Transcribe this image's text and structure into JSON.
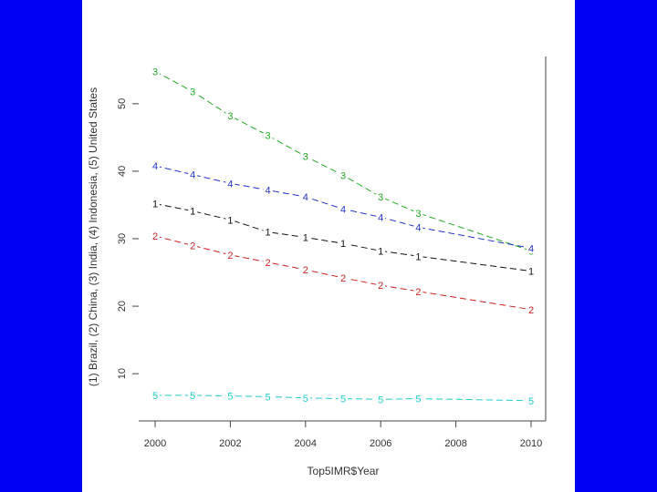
{
  "chart_data": {
    "type": "line",
    "title": "",
    "xlabel": "Top5IMR$Year",
    "ylabel": "(1) Brazil, (2) China, (3) India, (4) Indonesia, (5) United States",
    "xlim": [
      2000,
      2010
    ],
    "ylim": [
      3,
      57
    ],
    "xticks": [
      2000,
      2002,
      2004,
      2006,
      2008,
      2010
    ],
    "yticks": [
      10,
      20,
      30,
      40,
      50
    ],
    "x": [
      2000,
      2001,
      2002,
      2003,
      2004,
      2005,
      2006,
      2007,
      2010
    ],
    "series": [
      {
        "name": "India",
        "marker": "3",
        "color": "#22aa22",
        "values": [
          54.8,
          51.8,
          48.2,
          45.3,
          42.2,
          39.4,
          36.2,
          33.8,
          28.2
        ]
      },
      {
        "name": "Indonesia",
        "marker": "4",
        "color": "#2233cc",
        "values": [
          40.8,
          39.5,
          38.2,
          37.2,
          36.2,
          34.4,
          33.2,
          31.7,
          28.6
        ]
      },
      {
        "name": "Brazil",
        "marker": "1",
        "color": "#111111",
        "values": [
          35.2,
          34.1,
          32.8,
          31.0,
          30.2,
          29.3,
          28.2,
          27.4,
          25.2
        ]
      },
      {
        "name": "China",
        "marker": "2",
        "color": "#cc2222",
        "values": [
          30.4,
          29.0,
          27.6,
          26.5,
          25.4,
          24.2,
          23.1,
          22.2,
          19.5
        ]
      },
      {
        "name": "United States",
        "marker": "5",
        "color": "#22cccc",
        "values": [
          6.8,
          6.8,
          6.7,
          6.6,
          6.4,
          6.3,
          6.2,
          6.3,
          6.0
        ]
      }
    ]
  }
}
